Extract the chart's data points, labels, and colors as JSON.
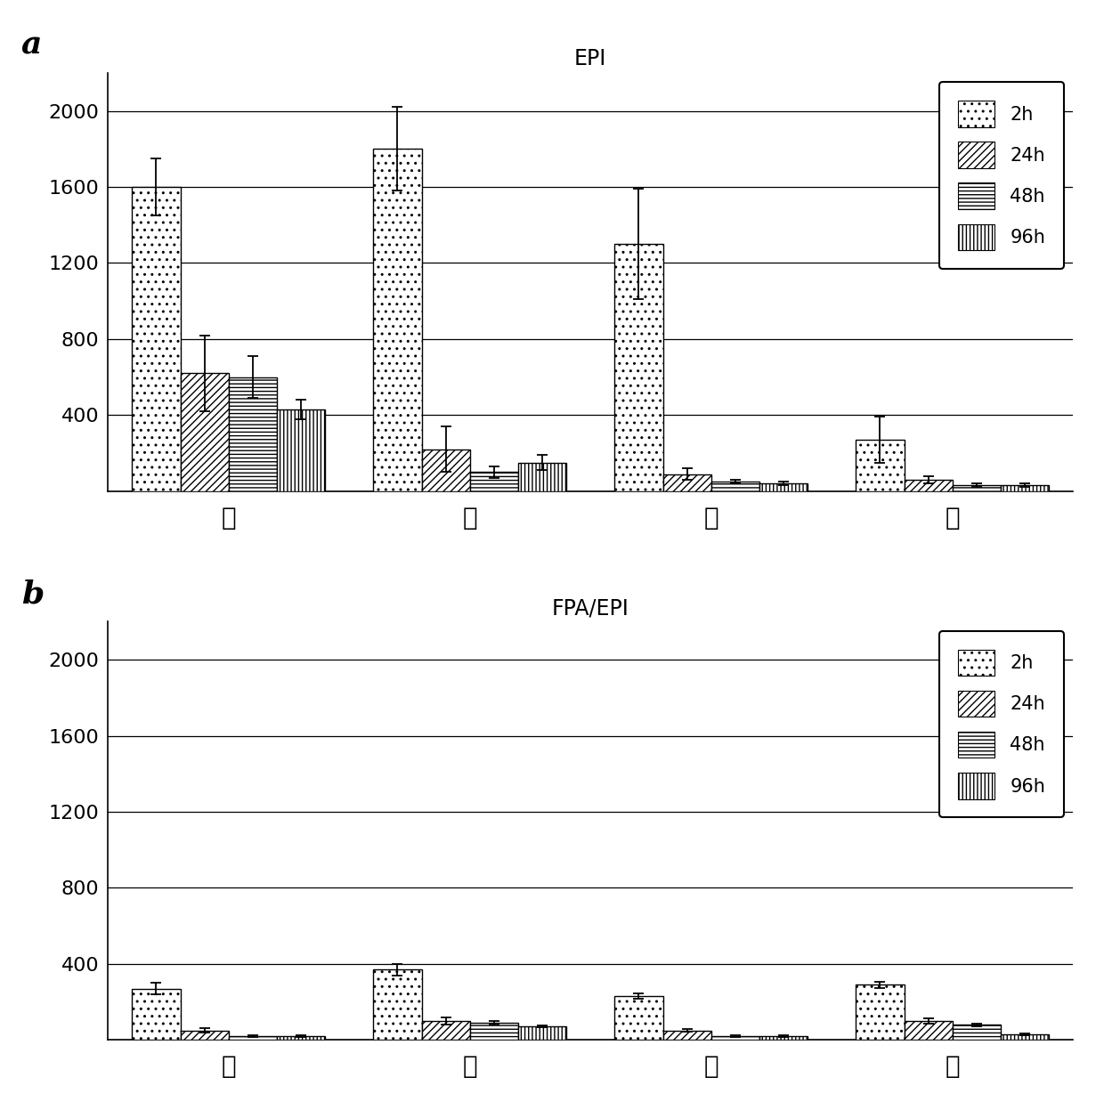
{
  "panel_a_title": "EPI",
  "panel_b_title": "FPA/EPI",
  "categories": [
    "肝",
    "脾",
    "肺",
    "腎"
  ],
  "panel_a": {
    "values": {
      "2h": [
        1600,
        1800,
        1300,
        270
      ],
      "24h": [
        620,
        220,
        90,
        60
      ],
      "48h": [
        600,
        100,
        50,
        30
      ],
      "96h": [
        430,
        150,
        40,
        30
      ]
    },
    "errors": {
      "2h": [
        150,
        220,
        290,
        120
      ],
      "24h": [
        200,
        120,
        30,
        20
      ],
      "48h": [
        110,
        30,
        10,
        10
      ],
      "96h": [
        50,
        40,
        10,
        10
      ]
    }
  },
  "panel_b": {
    "values": {
      "2h": [
        270,
        370,
        230,
        290
      ],
      "24h": [
        50,
        100,
        50,
        100
      ],
      "48h": [
        20,
        90,
        20,
        80
      ],
      "96h": [
        20,
        70,
        20,
        30
      ]
    },
    "errors": {
      "2h": [
        30,
        30,
        15,
        15
      ],
      "24h": [
        10,
        20,
        8,
        12
      ],
      "48h": [
        5,
        10,
        5,
        8
      ],
      "96h": [
        3,
        5,
        3,
        5
      ]
    }
  },
  "time_labels": [
    "2h",
    "24h",
    "48h",
    "96h"
  ],
  "ylim": [
    0,
    2200
  ],
  "yticks": [
    0,
    400,
    800,
    1200,
    1600,
    2000
  ],
  "background_color": "#ffffff",
  "bar_edge_color": "#000000",
  "label_fontsize": 20,
  "tick_fontsize": 16,
  "title_fontsize": 17,
  "legend_fontsize": 15,
  "panel_label_fontsize": 26
}
